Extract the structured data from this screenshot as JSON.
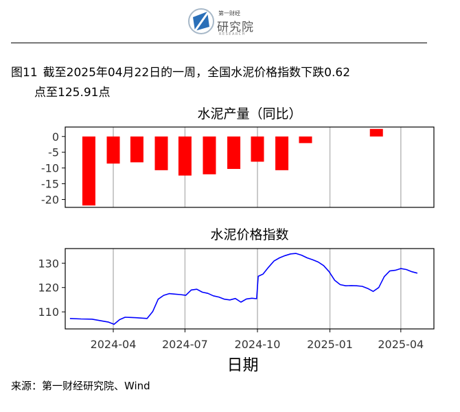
{
  "header": {
    "logo_cn": "第一财经",
    "logo_main": "研究院",
    "logo_en": "RESEARCH"
  },
  "figure": {
    "number": "图11",
    "title_line1": "截至2025年04月22日的一周，全国水泥价格指数下跌0.62",
    "title_line2": "点至125.91点"
  },
  "footer": {
    "source": "来源：第一财经研究院、Wind"
  },
  "colors": {
    "bar": "#ff0000",
    "line": "#0000ff",
    "grid": "#bdbdbd"
  },
  "chart_data": [
    {
      "type": "bar",
      "title": "水泥产量（同比）",
      "ylim": [
        -22.5,
        3
      ],
      "yticks": [
        0,
        -5,
        -10,
        -15,
        -20
      ],
      "grid": "vertical",
      "x": [
        "2024-03-01",
        "2024-04-01",
        "2024-05-01",
        "2024-06-01",
        "2024-07-01",
        "2024-08-01",
        "2024-09-01",
        "2024-10-01",
        "2024-11-01",
        "2024-12-01",
        "2025-03-01"
      ],
      "values": [
        -21.9,
        -8.6,
        -8.2,
        -10.7,
        -12.4,
        -12.0,
        -10.3,
        -8.0,
        -10.7,
        -2.1,
        2.4
      ]
    },
    {
      "type": "line",
      "title": "水泥价格指数",
      "ylim": [
        103,
        136
      ],
      "yticks": [
        110,
        120,
        130
      ],
      "xlabel": "日期",
      "xticks": [
        "2024-04",
        "2024-07",
        "2024-10",
        "2025-01",
        "2025-04"
      ],
      "grid": "vertical",
      "x": [
        "2024-02-06",
        "2024-02-20",
        "2024-03-05",
        "2024-03-19",
        "2024-03-26",
        "2024-04-02",
        "2024-04-09",
        "2024-04-16",
        "2024-04-23",
        "2024-04-30",
        "2024-05-14",
        "2024-05-21",
        "2024-05-28",
        "2024-06-04",
        "2024-06-11",
        "2024-06-18",
        "2024-06-25",
        "2024-07-02",
        "2024-07-09",
        "2024-07-16",
        "2024-07-23",
        "2024-07-30",
        "2024-08-06",
        "2024-08-13",
        "2024-08-20",
        "2024-08-27",
        "2024-09-03",
        "2024-09-10",
        "2024-09-17",
        "2024-09-24",
        "2024-09-30",
        "2024-10-02",
        "2024-10-08",
        "2024-10-15",
        "2024-10-22",
        "2024-10-29",
        "2024-11-05",
        "2024-11-12",
        "2024-11-19",
        "2024-11-26",
        "2024-12-03",
        "2024-12-10",
        "2024-12-17",
        "2024-12-24",
        "2024-12-31",
        "2025-01-07",
        "2025-01-14",
        "2025-01-21",
        "2025-01-28",
        "2025-02-04",
        "2025-02-11",
        "2025-02-18",
        "2025-02-25",
        "2025-03-04",
        "2025-03-11",
        "2025-03-18",
        "2025-03-25",
        "2025-04-01",
        "2025-04-08",
        "2025-04-15",
        "2025-04-22"
      ],
      "values": [
        107.3,
        107.1,
        107.0,
        106.2,
        105.8,
        104.9,
        106.8,
        107.8,
        107.7,
        107.6,
        107.3,
        110.1,
        115.2,
        116.8,
        117.5,
        117.3,
        117.1,
        116.8,
        119.0,
        119.3,
        118.1,
        117.6,
        116.6,
        116.1,
        115.2,
        114.9,
        115.5,
        114.0,
        115.3,
        115.6,
        115.4,
        124.6,
        125.5,
        128.3,
        130.9,
        132.2,
        133.1,
        133.8,
        134.0,
        133.3,
        132.2,
        131.4,
        130.5,
        129.0,
        126.5,
        123.0,
        121.2,
        120.7,
        120.8,
        120.7,
        120.5,
        119.6,
        118.4,
        120.0,
        124.5,
        126.8,
        127.1,
        127.8,
        127.4,
        126.5,
        125.91
      ]
    }
  ]
}
